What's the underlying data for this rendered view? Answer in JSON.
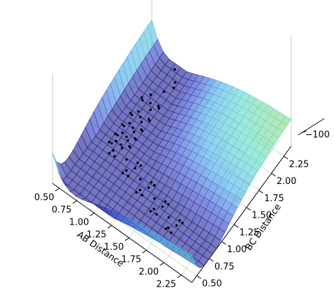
{
  "chart_data": {
    "type": "surface3d",
    "xlabel": "AB Distance",
    "ylabel": "BC Distance",
    "xlim": [
      0.4,
      2.4
    ],
    "ylim": [
      0.4,
      2.4
    ],
    "xticks": [
      {
        "value": 0.5,
        "label": "0.50"
      },
      {
        "value": 0.75,
        "label": "0.75"
      },
      {
        "value": 1.0,
        "label": "1.00"
      },
      {
        "value": 1.25,
        "label": "1.25"
      },
      {
        "value": 1.5,
        "label": "1.50"
      },
      {
        "value": 1.75,
        "label": "1.75"
      },
      {
        "value": 2.0,
        "label": "2.00"
      },
      {
        "value": 2.25,
        "label": "2.25"
      }
    ],
    "yticks": [
      {
        "value": 0.5,
        "label": "0.50"
      },
      {
        "value": 0.75,
        "label": "0.75"
      },
      {
        "value": 1.0,
        "label": "1.00"
      },
      {
        "value": 1.25,
        "label": "1.25"
      },
      {
        "value": 1.5,
        "label": "1.50"
      },
      {
        "value": 1.75,
        "label": "1.75"
      },
      {
        "value": 2.0,
        "label": "2.00"
      },
      {
        "value": 2.25,
        "label": "2.25"
      }
    ],
    "zticks": [
      {
        "value": -100,
        "label": "−100"
      }
    ]
  }
}
